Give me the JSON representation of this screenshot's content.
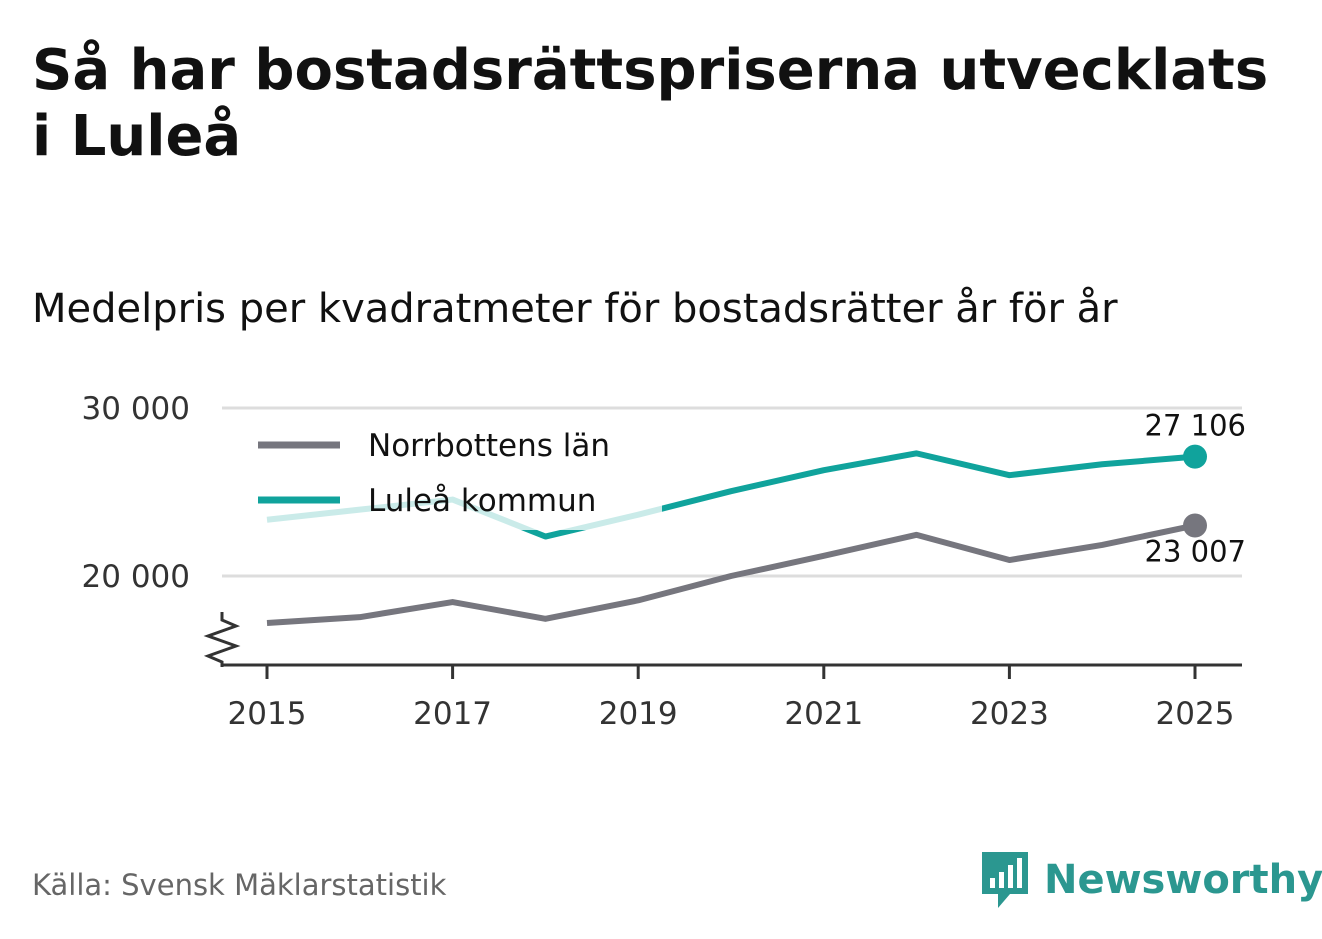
{
  "title": "Så har bostadsrättspriserna utvecklats i Luleå",
  "subtitle": "Medelpris per kvadratmeter för bostadsrätter år för år",
  "source": "Källa: Svensk Mäklarstatistik",
  "brand": "Newsworthy",
  "colors": {
    "norrbotten": "#76767e",
    "lulea": "#10a39c",
    "grid": "#dddddd",
    "axis": "#333333",
    "brand": "#2b9790"
  },
  "chart_data": {
    "type": "line",
    "title": "Så har bostadsrättspriserna utvecklats i Luleå",
    "subtitle": "Medelpris per kvadratmeter för bostadsrätter år för år",
    "xlabel": "",
    "ylabel": "",
    "x": [
      2015,
      2016,
      2017,
      2018,
      2019,
      2020,
      2021,
      2022,
      2023,
      2024,
      2025
    ],
    "x_ticks": [
      "2015",
      "2017",
      "2019",
      "2021",
      "2023",
      "2025"
    ],
    "y_ticks": [
      "20 000",
      "30 000"
    ],
    "y_tick_values": [
      20000,
      30000
    ],
    "ylim": [
      14500,
      30000
    ],
    "y_axis_break": true,
    "legend_position": "top-left",
    "series": [
      {
        "name": "Norrbottens län",
        "values": [
          17200,
          17550,
          18450,
          17450,
          18550,
          20000,
          21200,
          22450,
          20950,
          21850,
          23007
        ],
        "end_label": "23 007"
      },
      {
        "name": "Luleå kommun",
        "values": [
          23350,
          23950,
          24550,
          22350,
          23650,
          25050,
          26300,
          27300,
          26000,
          26650,
          27106
        ],
        "end_label": "27 106"
      }
    ]
  }
}
